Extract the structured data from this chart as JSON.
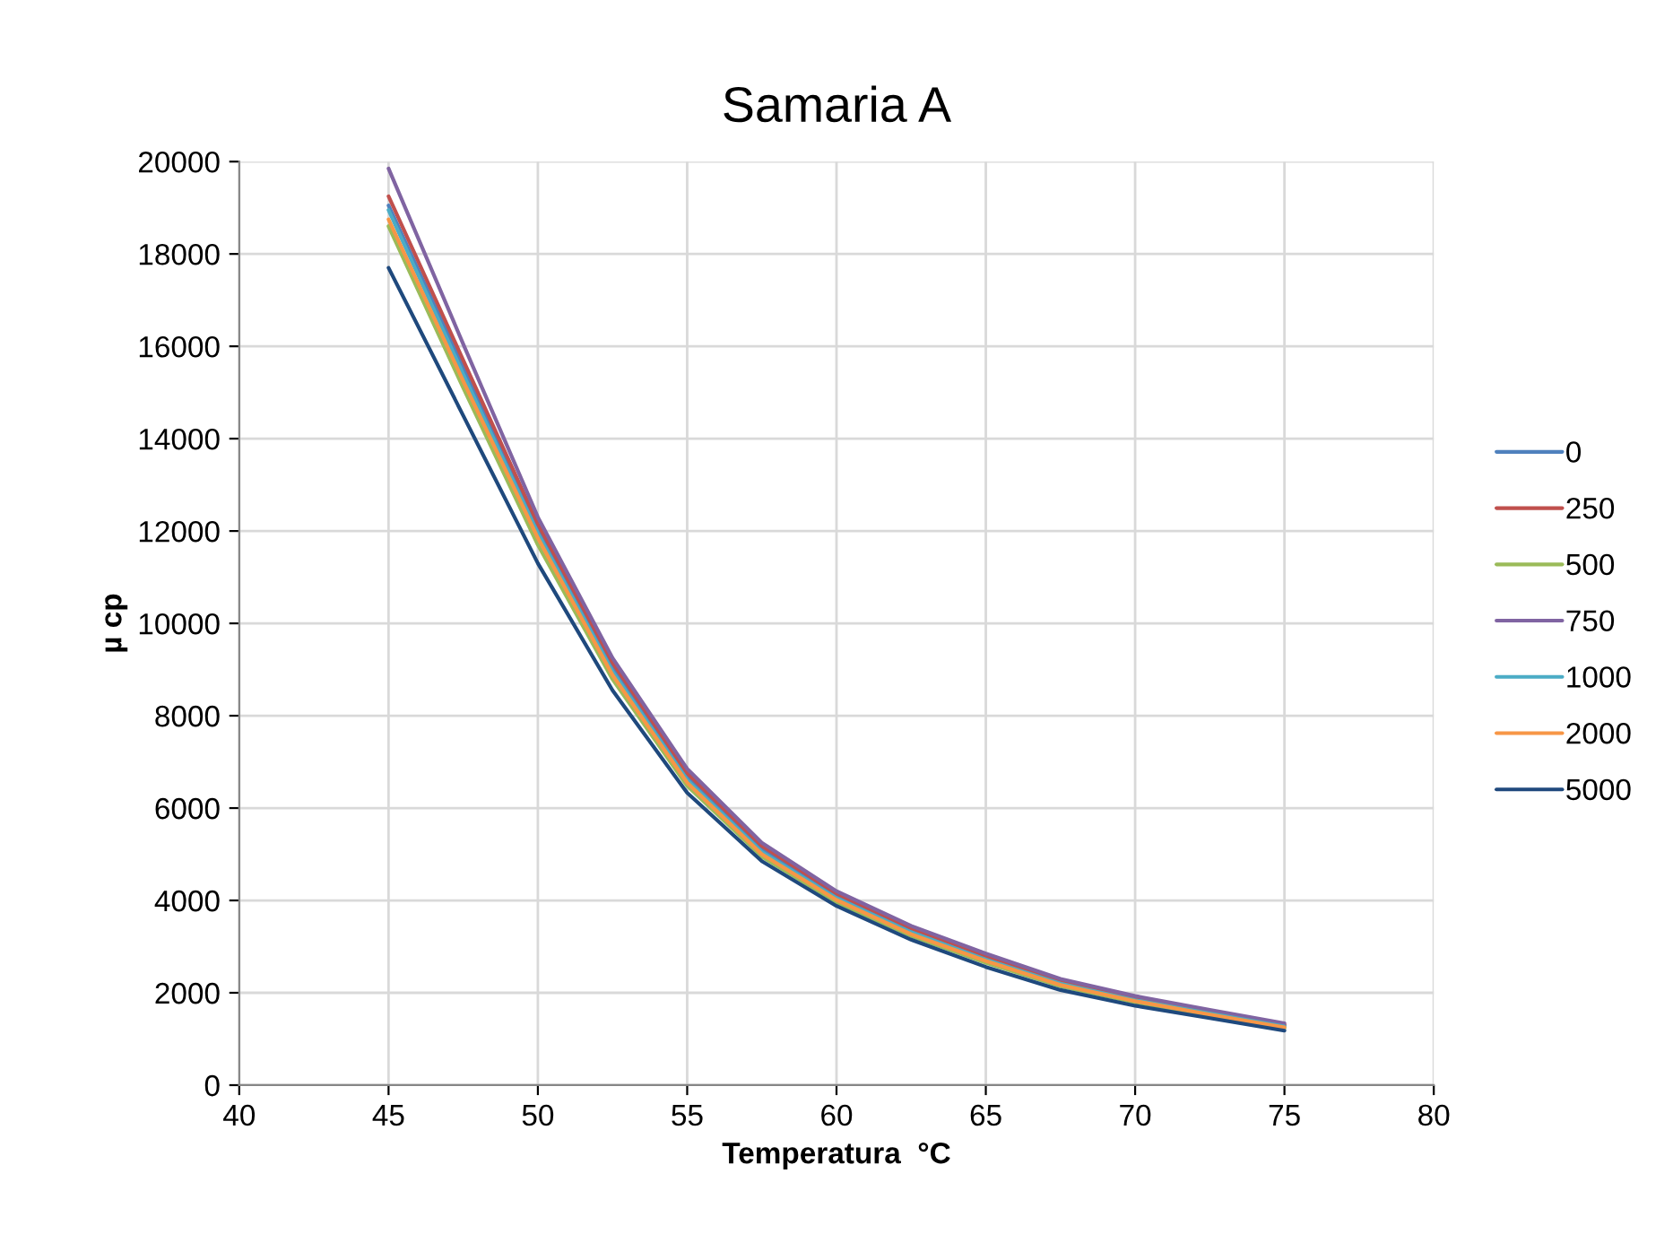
{
  "chart_data": {
    "type": "line",
    "title": "Samaria A",
    "xlabel": "Temperatura  °C",
    "ylabel": "µ cp",
    "x": [
      45,
      47.5,
      50,
      52.5,
      55,
      57.5,
      60,
      62.5,
      65,
      67.5,
      70,
      72.5,
      75
    ],
    "series": [
      {
        "name": "0",
        "color": "#4f81bd",
        "values": [
          19050,
          15550,
          12050,
          9050,
          6680,
          5110,
          4100,
          3350,
          2760,
          2230,
          1870,
          1570,
          1290
        ]
      },
      {
        "name": "250",
        "color": "#c0504d",
        "values": [
          19250,
          15700,
          12150,
          9150,
          6760,
          5180,
          4150,
          3400,
          2800,
          2260,
          1900,
          1600,
          1310
        ]
      },
      {
        "name": "500",
        "color": "#9bbb59",
        "values": [
          18600,
          15100,
          11700,
          8790,
          6480,
          4950,
          3960,
          3230,
          2650,
          2140,
          1790,
          1510,
          1230
        ]
      },
      {
        "name": "750",
        "color": "#8064a2",
        "values": [
          19850,
          16050,
          12300,
          9250,
          6850,
          5250,
          4200,
          3450,
          2850,
          2300,
          1930,
          1630,
          1340
        ]
      },
      {
        "name": "1000",
        "color": "#4bacc6",
        "values": [
          18950,
          15400,
          11950,
          8960,
          6610,
          5050,
          4050,
          3310,
          2720,
          2200,
          1840,
          1550,
          1270
        ]
      },
      {
        "name": "2000",
        "color": "#f79646",
        "values": [
          18750,
          15250,
          11850,
          8880,
          6550,
          5000,
          4010,
          3270,
          2690,
          2170,
          1820,
          1530,
          1250
        ]
      },
      {
        "name": "5000",
        "color": "#1f497d",
        "values": [
          17700,
          14500,
          11300,
          8550,
          6330,
          4850,
          3880,
          3150,
          2560,
          2060,
          1720,
          1450,
          1180
        ]
      }
    ],
    "xlim": [
      40,
      80
    ],
    "xticks": [
      40,
      45,
      50,
      55,
      60,
      65,
      70,
      75,
      80
    ],
    "ylim": [
      0,
      20000
    ],
    "yticks": [
      0,
      2000,
      4000,
      6000,
      8000,
      10000,
      12000,
      14000,
      16000,
      18000,
      20000
    ],
    "grid": true,
    "legend": "right",
    "marker": "none",
    "line_style": "solid"
  }
}
